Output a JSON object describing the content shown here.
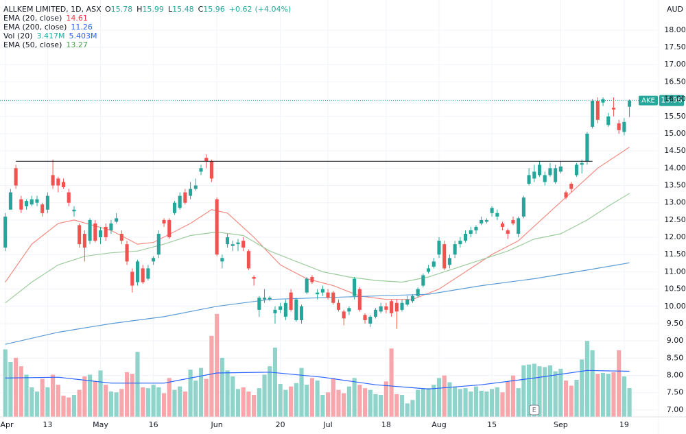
{
  "chart_data": {
    "type": "candlestick",
    "title": "ALLKEM LIMITED, 1D, ASX",
    "currency": "AUD",
    "symbol": "AKE",
    "readout_labels": [
      "O",
      "H",
      "L",
      "C"
    ],
    "change": {
      "value": 0.62,
      "label": "+0.62"
    },
    "change_pct": {
      "value": 4.04,
      "label": "(+4.04%)"
    },
    "up_color": "#26a69a",
    "down_color": "#ef5350",
    "volume_up_color": "#8fd3ca",
    "volume_down_color": "#f7a7ab",
    "open": [
      11.7,
      12.8,
      14.0,
      13.1,
      12.9,
      12.95,
      13.0,
      12.95,
      12.8,
      13.8,
      13.7,
      13.6,
      13.3,
      12.75,
      12.35,
      12.1,
      11.9,
      12.4,
      12.0,
      12.3,
      12.2,
      12.45,
      12.1,
      11.8,
      11.0,
      10.7,
      11.1,
      10.8,
      11.3,
      11.5,
      12.5,
      12.5,
      12.7,
      12.85,
      13.3,
      13.2,
      13.4,
      13.9,
      14.3,
      14.2,
      13.1,
      11.3,
      11.8,
      11.75,
      11.8,
      11.9,
      11.6,
      10.85,
      9.9,
      10.2,
      10.2,
      9.8,
      9.9,
      9.7,
      10.4,
      9.6,
      9.6,
      10.4,
      10.85,
      10.35,
      10.4,
      10.4,
      10.4,
      10.1,
      9.85,
      9.85,
      10.3,
      10.5,
      9.75,
      9.5,
      9.7,
      9.85,
      10.0,
      10.15,
      10.1,
      9.9,
      10.05,
      10.15,
      10.3,
      10.6,
      11.0,
      11.15,
      11.5,
      11.8,
      11.2,
      11.5,
      11.8,
      11.9,
      12.1,
      12.2,
      12.4,
      12.45,
      12.7,
      12.6,
      12.4,
      12.2,
      12.5,
      12.1,
      12.6,
      13.55,
      13.7,
      13.8,
      13.6,
      13.8,
      13.6,
      13.9,
      13.3,
      13.55,
      13.8,
      14.1,
      14.2,
      15.2,
      15.95,
      15.9,
      15.25,
      15.75,
      15.3,
      15.05,
      15.78
    ],
    "high": [
      12.7,
      13.4,
      14.1,
      13.2,
      13.1,
      13.2,
      13.2,
      13.0,
      13.3,
      14.25,
      13.75,
      13.7,
      13.4,
      12.9,
      12.4,
      12.2,
      12.55,
      12.5,
      12.3,
      12.4,
      12.5,
      12.7,
      12.2,
      11.9,
      11.1,
      11.35,
      11.2,
      11.2,
      11.45,
      12.2,
      12.55,
      12.55,
      13.05,
      13.3,
      13.4,
      13.6,
      13.7,
      14.1,
      14.4,
      14.25,
      13.15,
      11.5,
      12.1,
      11.9,
      11.95,
      12.0,
      11.65,
      10.9,
      10.3,
      10.5,
      10.3,
      10.0,
      10.1,
      10.2,
      10.5,
      10.25,
      10.05,
      10.85,
      10.9,
      10.5,
      10.6,
      10.5,
      10.45,
      10.2,
      9.9,
      10.0,
      10.85,
      10.55,
      9.8,
      9.75,
      9.95,
      10.1,
      10.1,
      10.2,
      10.2,
      10.2,
      10.3,
      10.35,
      10.55,
      10.95,
      11.2,
      11.4,
      12.0,
      11.9,
      11.5,
      11.9,
      12.0,
      12.2,
      12.3,
      12.35,
      12.6,
      12.55,
      12.9,
      12.8,
      12.45,
      12.25,
      12.6,
      12.6,
      13.2,
      14.0,
      14.1,
      14.2,
      13.9,
      14.15,
      14.1,
      14.2,
      13.35,
      13.6,
      14.15,
      14.25,
      15.05,
      16.0,
      16.05,
      16.05,
      15.6,
      16.05,
      15.4,
      15.45,
      15.99
    ],
    "low": [
      11.6,
      12.8,
      13.4,
      12.7,
      12.8,
      12.9,
      12.9,
      12.6,
      12.7,
      13.4,
      13.3,
      13.4,
      12.9,
      12.6,
      11.7,
      11.3,
      11.8,
      11.85,
      11.8,
      11.9,
      12.1,
      12.4,
      11.8,
      11.2,
      10.4,
      10.6,
      10.65,
      10.75,
      11.2,
      11.4,
      12.3,
      11.95,
      12.65,
      12.8,
      12.95,
      13.1,
      13.35,
      13.8,
      14.0,
      13.6,
      11.45,
      11.1,
      11.7,
      11.6,
      11.6,
      11.6,
      11.05,
      10.6,
      9.7,
      10.1,
      10.15,
      9.5,
      9.8,
      9.6,
      9.85,
      9.55,
      9.5,
      10.35,
      10.65,
      10.2,
      10.3,
      10.2,
      10.05,
      9.85,
      9.45,
      9.75,
      10.2,
      9.85,
      9.5,
      9.4,
      9.65,
      9.8,
      9.8,
      9.7,
      9.35,
      9.85,
      10.0,
      10.1,
      10.25,
      10.55,
      10.95,
      11.1,
      11.4,
      11.05,
      11.1,
      11.4,
      11.7,
      11.85,
      12.0,
      12.1,
      12.35,
      12.4,
      12.6,
      12.5,
      12.2,
      11.95,
      12.35,
      12.0,
      12.55,
      13.5,
      13.6,
      13.75,
      13.5,
      13.75,
      13.55,
      13.85,
      13.1,
      13.3,
      13.75,
      13.85,
      14.1,
      15.15,
      15.3,
      15.8,
      15.2,
      15.5,
      15.0,
      14.95,
      15.48
    ],
    "close": [
      12.6,
      13.3,
      13.5,
      12.8,
      13.05,
      13.1,
      13.1,
      12.7,
      13.2,
      13.5,
      13.5,
      13.45,
      13.0,
      12.8,
      11.8,
      11.7,
      12.5,
      11.9,
      12.2,
      12.0,
      12.4,
      12.55,
      11.9,
      11.3,
      10.6,
      11.3,
      10.7,
      11.1,
      11.4,
      12.1,
      12.4,
      12.0,
      13.0,
      13.2,
      13.0,
      13.4,
      13.5,
      14.0,
      14.2,
      13.7,
      11.5,
      11.4,
      12.0,
      11.8,
      11.85,
      11.7,
      11.1,
      10.8,
      10.25,
      10.25,
      10.25,
      9.9,
      10.0,
      10.1,
      9.9,
      10.2,
      10.0,
      10.8,
      10.7,
      10.4,
      10.5,
      10.25,
      10.1,
      9.9,
      9.65,
      9.95,
      10.8,
      9.9,
      9.6,
      9.7,
      9.9,
      10.0,
      9.9,
      9.8,
      9.85,
      10.1,
      10.2,
      10.3,
      10.5,
      10.9,
      11.1,
      11.3,
      11.9,
      11.1,
      11.4,
      11.8,
      11.9,
      12.1,
      12.2,
      12.3,
      12.5,
      12.5,
      12.85,
      12.7,
      12.3,
      12.1,
      12.4,
      12.55,
      13.15,
      13.8,
      13.9,
      14.1,
      13.8,
      14.0,
      14.0,
      14.05,
      13.15,
      13.4,
      14.1,
      14.15,
      15.0,
      15.95,
      15.4,
      16.0,
      15.5,
      15.7,
      15.1,
      15.34,
      15.96
    ],
    "xlim": [
      -1,
      123.5
    ],
    "xticks": [
      {
        "value": 0,
        "label": "Apr"
      },
      {
        "value": 8,
        "label": "13"
      },
      {
        "value": 18,
        "label": "May"
      },
      {
        "value": 28,
        "label": "16"
      },
      {
        "value": 40,
        "label": "Jun"
      },
      {
        "value": 52,
        "label": "20"
      },
      {
        "value": 61,
        "label": "Jul"
      },
      {
        "value": 72,
        "label": "18"
      },
      {
        "value": 82,
        "label": "Aug"
      },
      {
        "value": 92,
        "label": "15"
      },
      {
        "value": 105,
        "label": "Sep"
      },
      {
        "value": 117,
        "label": "19"
      }
    ],
    "ylim": [
      6.8,
      18.87
    ],
    "yticks": [
      {
        "value": 7,
        "label": "7.00"
      },
      {
        "value": 7.5,
        "label": "7.50"
      },
      {
        "value": 8,
        "label": "8.00"
      },
      {
        "value": 8.5,
        "label": "8.50"
      },
      {
        "value": 9,
        "label": "9.00"
      },
      {
        "value": 9.5,
        "label": "9.50"
      },
      {
        "value": 10,
        "label": "10.00"
      },
      {
        "value": 10.5,
        "label": "10.50"
      },
      {
        "value": 11,
        "label": "11.00"
      },
      {
        "value": 11.5,
        "label": "11.50"
      },
      {
        "value": 12,
        "label": "12.00"
      },
      {
        "value": 12.5,
        "label": "12.50"
      },
      {
        "value": 13,
        "label": "13.00"
      },
      {
        "value": 13.5,
        "label": "13.50"
      },
      {
        "value": 14,
        "label": "14.00"
      },
      {
        "value": 14.5,
        "label": "14.50"
      },
      {
        "value": 15,
        "label": "15.00"
      },
      {
        "value": 15.5,
        "label": "15.50"
      },
      {
        "value": 16,
        "label": "16.00"
      },
      {
        "value": 16.5,
        "label": "16.50"
      },
      {
        "value": 17,
        "label": "17.00"
      },
      {
        "value": 17.5,
        "label": "17.50"
      },
      {
        "value": 18,
        "label": "18.00"
      }
    ],
    "grid": true,
    "horizontal_line": {
      "value": 14.2,
      "x": [
        2,
        111
      ],
      "color": "#131722"
    },
    "earnings": {
      "label": "E",
      "x": 100
    },
    "indicators": [
      {
        "name": "EMA (20, close)",
        "color": "#f28b82",
        "label_color": "#f23645",
        "x": [
          0,
          5,
          10,
          13,
          20,
          25,
          28,
          35,
          39,
          42,
          47,
          52,
          57,
          62,
          67,
          72,
          77,
          82,
          87,
          92,
          97,
          102,
          107,
          112,
          118
        ],
        "values": [
          10.7,
          11.8,
          12.4,
          12.5,
          12.2,
          11.8,
          11.85,
          12.4,
          12.8,
          12.7,
          12.0,
          11.2,
          10.8,
          10.6,
          10.3,
          10.2,
          10.2,
          10.5,
          11.0,
          11.5,
          11.9,
          12.6,
          13.3,
          14.0,
          14.61
        ]
      },
      {
        "name": "EMA (200, close)",
        "color": "#5b9bd5",
        "label_color": "#2962ff",
        "x": [
          0,
          10,
          20,
          30,
          40,
          50,
          60,
          70,
          80,
          90,
          100,
          110,
          118
        ],
        "values": [
          8.9,
          9.25,
          9.5,
          9.7,
          10.0,
          10.2,
          10.25,
          10.3,
          10.35,
          10.6,
          10.8,
          11.05,
          11.26
        ]
      },
      {
        "name": "EMA (50, close)",
        "color": "#9ccc9c",
        "label_color": "#43a047",
        "x": [
          0,
          5,
          10,
          15,
          20,
          25,
          30,
          35,
          40,
          45,
          50,
          55,
          60,
          65,
          70,
          75,
          80,
          85,
          90,
          95,
          100,
          105,
          110,
          114,
          118
        ],
        "values": [
          10.1,
          10.7,
          11.2,
          11.45,
          11.55,
          11.6,
          11.8,
          12.05,
          12.15,
          12.05,
          11.6,
          11.3,
          11.0,
          10.85,
          10.75,
          10.7,
          10.85,
          11.1,
          11.35,
          11.6,
          11.95,
          12.1,
          12.5,
          12.9,
          13.27
        ]
      }
    ],
    "volume": {
      "name": "Vol (20)",
      "ylim": [
        0,
        13
      ],
      "values": [
        8.0,
        6.5,
        7.0,
        6.0,
        5.0,
        3.5,
        3.0,
        4.5,
        3.5,
        5.0,
        3.8,
        2.5,
        2.3,
        2.6,
        3.2,
        4.8,
        5.0,
        4.2,
        5.5,
        3.8,
        3.0,
        2.9,
        3.3,
        5.3,
        5.1,
        7.7,
        3.5,
        3.4,
        3.8,
        3.5,
        2.8,
        4.6,
        3.2,
        3.6,
        3.0,
        5.6,
        4.3,
        5.8,
        4.5,
        9.6,
        12.2,
        7.0,
        5.5,
        4.8,
        3.3,
        3.5,
        3.0,
        2.6,
        3.4,
        5.0,
        6.0,
        8.2,
        3.9,
        3.2,
        3.6,
        4.0,
        5.8,
        3.8,
        4.6,
        4.3,
        2.6,
        2.9,
        4.6,
        3.2,
        2.8,
        3.6,
        4.6,
        3.8,
        3.4,
        3.2,
        2.7,
        2.6,
        4.2,
        8.1,
        2.7,
        2.6,
        1.6,
        2.0,
        3.2,
        3.4,
        3.4,
        3.8,
        4.6,
        4.9,
        4.1,
        3.6,
        3.3,
        3.4,
        3.0,
        3.6,
        3.1,
        3.0,
        3.3,
        3.5,
        2.9,
        4.2,
        4.9,
        3.4,
        6.1,
        6.2,
        6.3,
        6.0,
        5.9,
        6.1,
        5.4,
        5.7,
        4.3,
        3.7,
        4.4,
        6.8,
        9.0,
        7.9,
        5.1,
        5.2,
        5.1,
        5.3,
        7.9,
        4.8,
        3.417
      ],
      "last_label": "3.417M",
      "label_color": "#26a69a",
      "ma": {
        "color": "#2962ff",
        "x": [
          0,
          10,
          20,
          30,
          40,
          50,
          60,
          70,
          80,
          90,
          100,
          110,
          118
        ],
        "values": [
          4.6,
          4.7,
          4.0,
          4.0,
          5.2,
          5.3,
          4.7,
          3.8,
          3.3,
          3.8,
          4.6,
          5.5,
          5.403
        ],
        "last_label": "5.403M"
      }
    }
  }
}
